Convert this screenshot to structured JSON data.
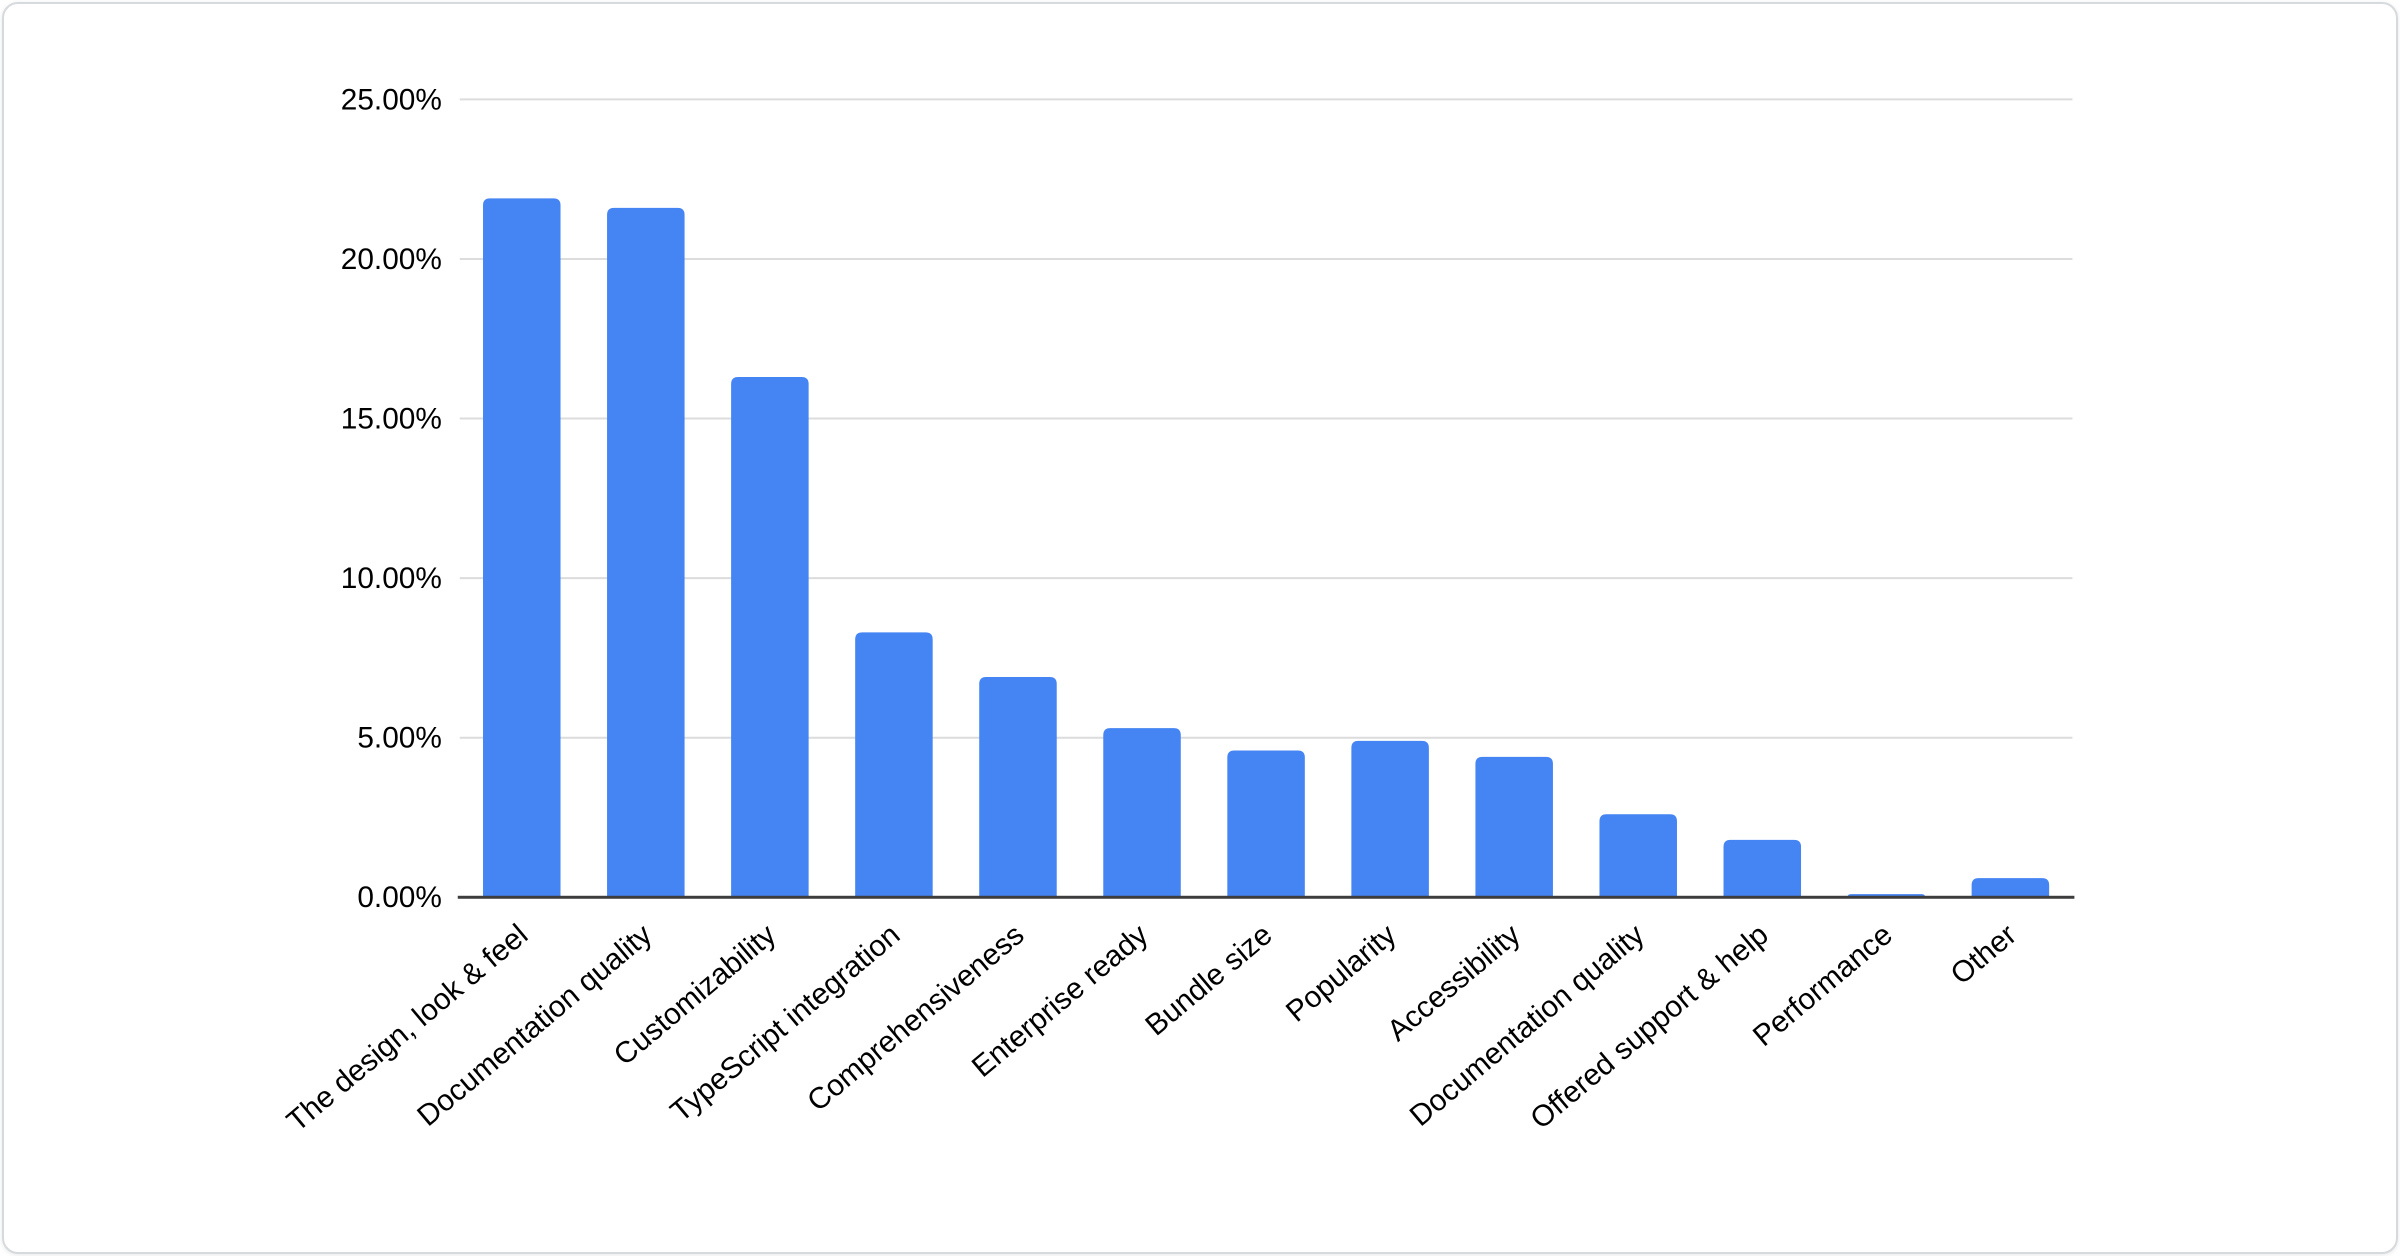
{
  "page": {
    "background_color": "#ffffff"
  },
  "card": {
    "background_color": "#ffffff",
    "border_color": "#d7dadd"
  },
  "chart_data": {
    "type": "bar",
    "title": "",
    "xlabel": "",
    "ylabel": "",
    "legend": "none",
    "grid": true,
    "x_label_rotation_deg": -40,
    "categories": [
      "The design, look & feel",
      "Documentation quality",
      "Customizability",
      "TypeScript integration",
      "Comprehensiveness",
      "Enterprise ready",
      "Bundle size",
      "Popularity",
      "Accessibility",
      "Documentation quality",
      "Offered support & help",
      "Performance",
      "Other"
    ],
    "values": [
      21.9,
      21.6,
      16.3,
      8.3,
      6.9,
      5.3,
      4.6,
      4.9,
      4.4,
      2.6,
      1.8,
      0.1,
      0.6
    ],
    "value_unit": "%",
    "y_axis": {
      "min": 0,
      "max": 25,
      "step": 5,
      "tick_labels": [
        "0.00%",
        "5.00%",
        "10.00%",
        "15.00%",
        "20.00%",
        "25.00%"
      ]
    },
    "colors": {
      "bar": "#4484f3",
      "gridline": "#dcdcdc",
      "axis_line": "#3d3d3d",
      "text": "#000000",
      "plot_background": "#ffffff"
    }
  }
}
